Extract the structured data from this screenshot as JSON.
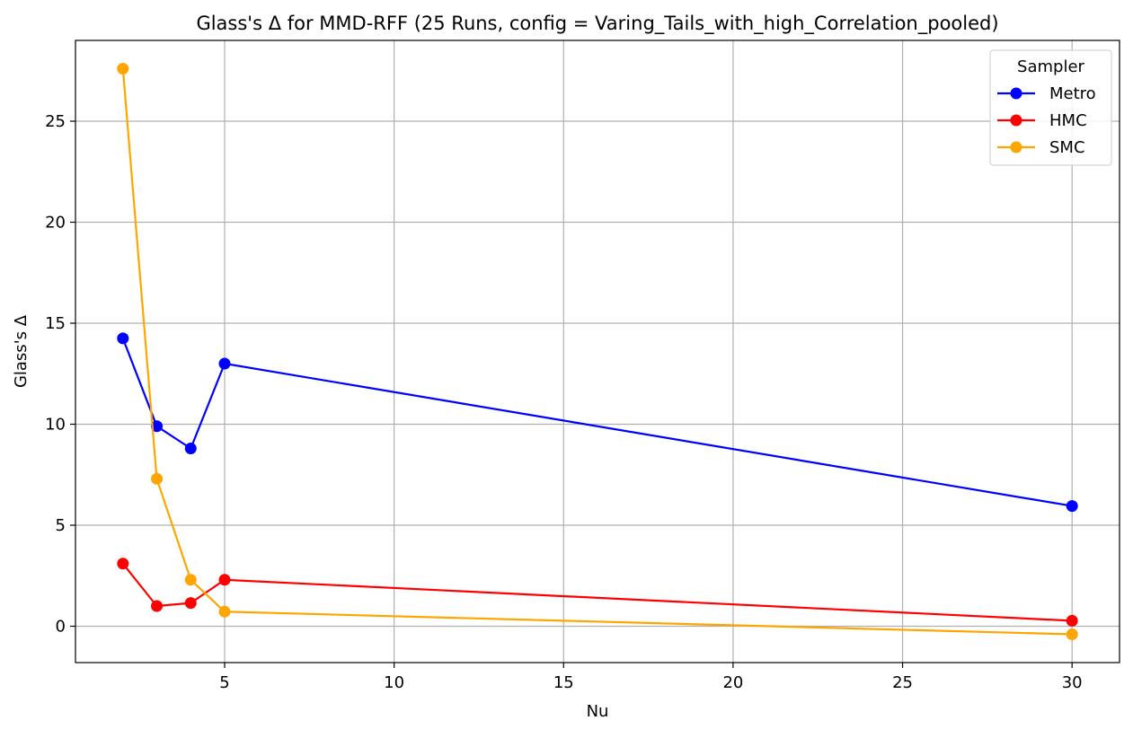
{
  "chart_data": {
    "type": "line",
    "title": "Glass's Δ for MMD-RFF (25 Runs, config = Varing_Tails_with_high_Correlation_pooled)",
    "xlabel": "Nu",
    "ylabel": "Glass's Δ",
    "x": [
      2,
      3,
      4,
      5,
      30
    ],
    "xlim": [
      0.6,
      31.4
    ],
    "ylim": [
      -1.8,
      29.0
    ],
    "xticks": [
      5,
      10,
      15,
      20,
      25,
      30
    ],
    "yticks": [
      0,
      5,
      10,
      15,
      20,
      25
    ],
    "grid": true,
    "legend": {
      "title": "Sampler",
      "placement": "top-right"
    },
    "series": [
      {
        "name": "Metro",
        "color": "#0000ff",
        "values": [
          14.25,
          9.9,
          8.8,
          13.0,
          5.95
        ]
      },
      {
        "name": "HMC",
        "color": "#ff0000",
        "values": [
          3.1,
          1.0,
          1.15,
          2.3,
          0.27
        ]
      },
      {
        "name": "SMC",
        "color": "#ffa500",
        "values": [
          27.6,
          7.3,
          2.3,
          0.72,
          -0.4
        ]
      }
    ]
  }
}
